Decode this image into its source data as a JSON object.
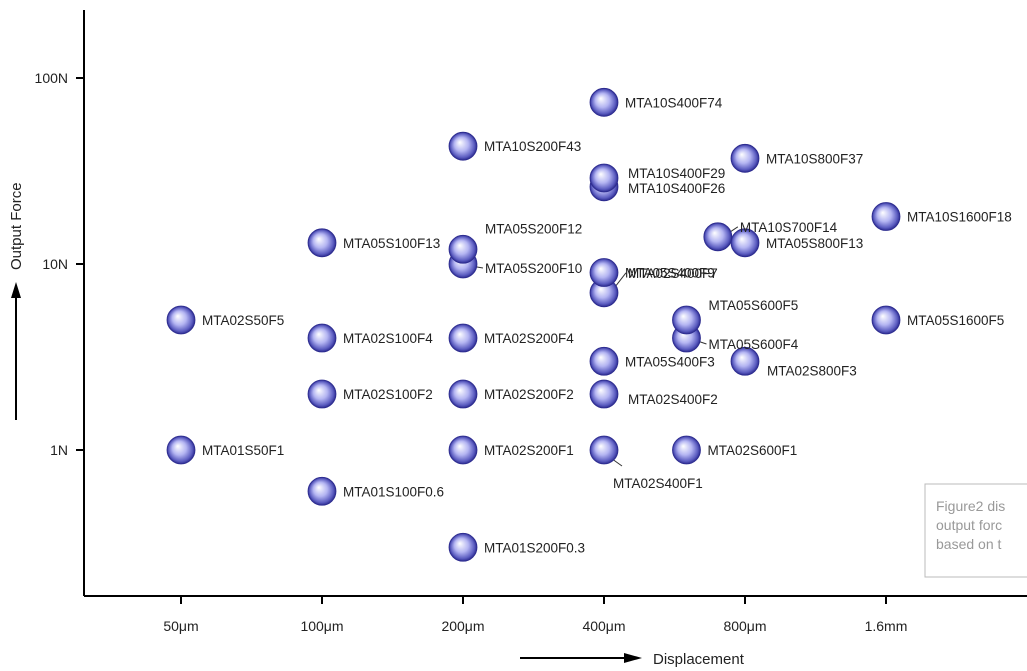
{
  "chart_data": {
    "type": "scatter",
    "title": "",
    "xlabel": "Displacement",
    "ylabel": "Output Force",
    "x_scale": "log",
    "y_scale": "log",
    "x_tick_values": [
      50,
      100,
      200,
      400,
      800,
      1600
    ],
    "x_tick_labels": [
      "50μm",
      "100μm",
      "200μm",
      "400μm",
      "800μm",
      "1.6mm"
    ],
    "y_tick_values": [
      1,
      10,
      100
    ],
    "y_tick_labels": [
      "1N",
      "10N",
      "100N"
    ],
    "points": [
      {
        "label": "MTA01S50F1",
        "x": 50,
        "y": 1
      },
      {
        "label": "MTA02S50F5",
        "x": 50,
        "y": 5
      },
      {
        "label": "MTA01S100F0.6",
        "x": 100,
        "y": 0.6
      },
      {
        "label": "MTA02S100F2",
        "x": 100,
        "y": 2
      },
      {
        "label": "MTA02S100F4",
        "x": 100,
        "y": 4
      },
      {
        "label": "MTA05S100F13",
        "x": 100,
        "y": 13
      },
      {
        "label": "MTA01S200F0.3",
        "x": 200,
        "y": 0.3
      },
      {
        "label": "MTA02S200F1",
        "x": 200,
        "y": 1
      },
      {
        "label": "MTA02S200F2",
        "x": 200,
        "y": 2
      },
      {
        "label": "MTA02S200F4",
        "x": 200,
        "y": 4
      },
      {
        "label": "MTA05S200F10",
        "x": 200,
        "y": 10
      },
      {
        "label": "MTA05S200F12",
        "x": 200,
        "y": 12
      },
      {
        "label": "MTA10S200F43",
        "x": 200,
        "y": 43
      },
      {
        "label": "MTA02S400F1",
        "x": 400,
        "y": 1
      },
      {
        "label": "MTA02S400F2",
        "x": 400,
        "y": 2
      },
      {
        "label": "MTA05S400F3",
        "x": 400,
        "y": 3
      },
      {
        "label": "MTA02S400F7",
        "x": 400,
        "y": 7
      },
      {
        "label": "MTA05S400F9",
        "x": 400,
        "y": 9
      },
      {
        "label": "MTA10S400F26",
        "x": 400,
        "y": 26
      },
      {
        "label": "MTA10S400F29",
        "x": 400,
        "y": 29
      },
      {
        "label": "MTA10S400F74",
        "x": 400,
        "y": 74
      },
      {
        "label": "MTA02S600F1",
        "x": 600,
        "y": 1
      },
      {
        "label": "MTA05S600F4",
        "x": 600,
        "y": 4
      },
      {
        "label": "MTA05S600F5",
        "x": 600,
        "y": 5
      },
      {
        "label": "MTA10S700F14",
        "x": 700,
        "y": 14
      },
      {
        "label": "MTA02S800F3",
        "x": 800,
        "y": 3
      },
      {
        "label": "MTA05S800F13",
        "x": 800,
        "y": 13
      },
      {
        "label": "MTA10S800F37",
        "x": 800,
        "y": 37
      },
      {
        "label": "MTA05S1600F5",
        "x": 1600,
        "y": 5
      },
      {
        "label": "MTA10S1600F18",
        "x": 1600,
        "y": 18
      }
    ],
    "colors": {
      "marker_center": "#ffffff",
      "marker_mid": "#a9aaf0",
      "marker_edge": "#2b2a8e",
      "axis": "#000000"
    }
  },
  "note": {
    "lines": [
      "Figure2 dis",
      "output forc",
      "based on t"
    ]
  }
}
